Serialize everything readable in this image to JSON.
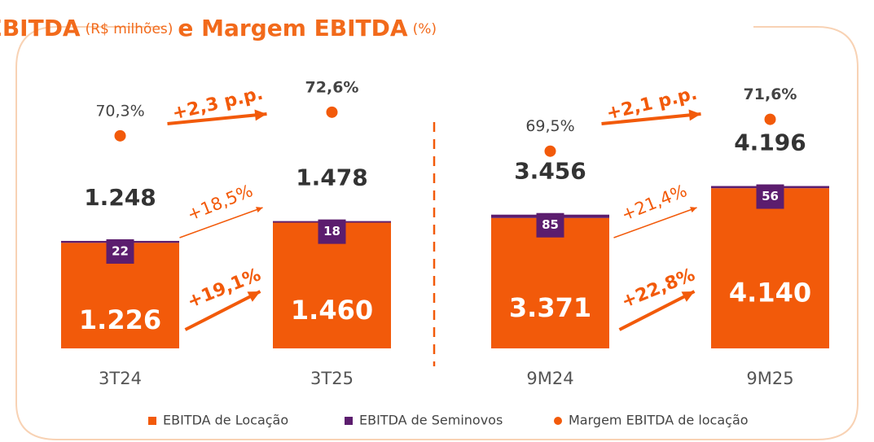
{
  "title": [
    "EBITDA",
    "(R$ milhões)",
    "e Margem EBITDA",
    "(%)"
  ],
  "chart_data": [
    {
      "type": "bar",
      "stacked": true,
      "categories": [
        "3T24",
        "3T25"
      ],
      "ylim": [
        0,
        3100
      ],
      "y2lim": [
        49.6,
        75.6
      ],
      "series": [
        {
          "name": "EBITDA de Locação",
          "color": "#f25a0a",
          "values": [
            1226,
            1460
          ],
          "value_labels": [
            "1.226",
            "1.460"
          ]
        },
        {
          "name": "EBITDA de Seminovos",
          "color": "#5c1d6e",
          "values": [
            22,
            18
          ]
        },
        {
          "name": "Margem EBITDA de locação",
          "type": "scatter",
          "axis": "y2",
          "color": "#f25a0a",
          "values": [
            70.3,
            72.6
          ],
          "value_labels": [
            "70,3%",
            "72,6%"
          ]
        }
      ],
      "totals": {
        "values": [
          1248,
          1478
        ],
        "value_labels": [
          "1.248",
          "1.478"
        ]
      },
      "annotations": [
        "+2,3 p.p.",
        "+18,5%",
        "+19,1%"
      ]
    },
    {
      "type": "bar",
      "stacked": true,
      "categories": [
        "9M24",
        "9M25"
      ],
      "ylim": [
        0,
        6900
      ],
      "y2lim": [
        56.5,
        74.1
      ],
      "series": [
        {
          "name": "EBITDA de Locação",
          "color": "#f25a0a",
          "values": [
            3371,
            4140
          ],
          "value_labels": [
            "3.371",
            "4.140"
          ]
        },
        {
          "name": "EBITDA de Seminovos",
          "color": "#5c1d6e",
          "values": [
            85,
            56
          ]
        },
        {
          "name": "Margem EBITDA de locação",
          "type": "scatter",
          "axis": "y2",
          "color": "#f25a0a",
          "values": [
            69.5,
            71.6
          ],
          "value_labels": [
            "69,5%",
            "71,6%"
          ]
        }
      ],
      "totals": {
        "values": [
          3456,
          4196
        ],
        "value_labels": [
          "3.456",
          "4.196"
        ]
      },
      "annotations": [
        "+2,1 p.p.",
        "+21,4%",
        "+22,8%"
      ]
    }
  ]
}
